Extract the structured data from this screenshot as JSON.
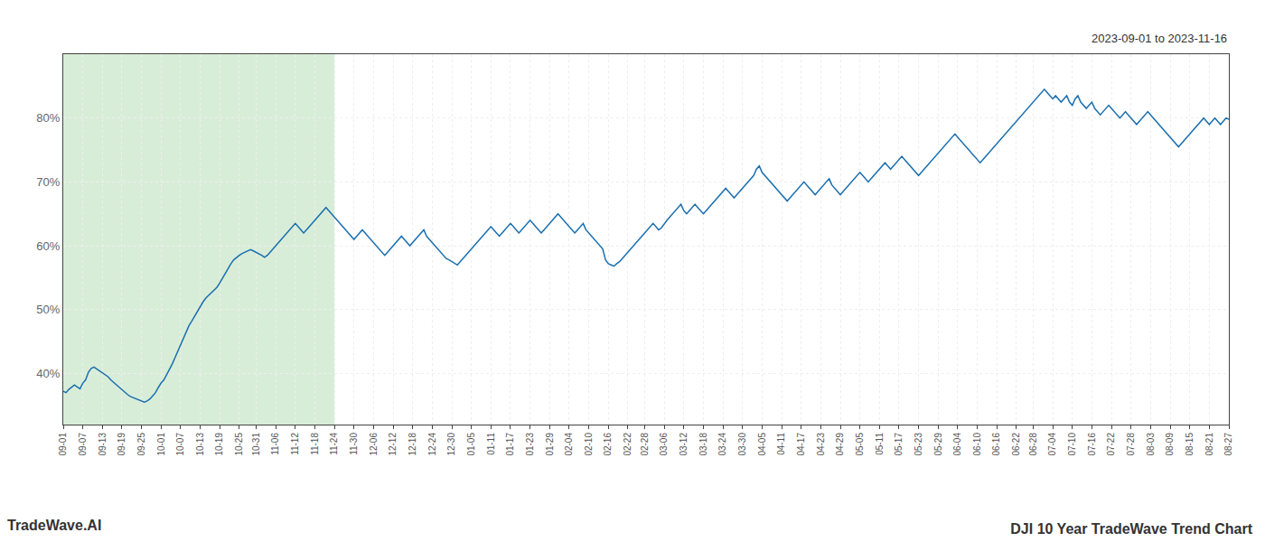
{
  "chart_data": {
    "type": "line",
    "title": "DJI 10 Year TradeWave Trend Chart",
    "annotations": [
      {
        "text": "TradeWave.AI"
      },
      {
        "text": "2023-09-01 to 2023-11-16"
      }
    ],
    "color": "#1a6faf",
    "grid": true,
    "ylim": [
      32,
      90
    ],
    "yticks": [
      {
        "value": 40,
        "label": "40%"
      },
      {
        "value": 50,
        "label": "50%"
      },
      {
        "value": 60,
        "label": "60%"
      },
      {
        "value": 70,
        "label": "70%"
      },
      {
        "value": 80,
        "label": "80%"
      }
    ],
    "spans": [
      {
        "start": "09-01",
        "end": "11-24",
        "color": "#d8edd8"
      }
    ],
    "categories": [
      "09-01",
      null,
      null,
      null,
      null,
      null,
      null,
      "09-07",
      null,
      null,
      null,
      null,
      null,
      null,
      "09-13",
      null,
      null,
      null,
      null,
      null,
      null,
      "09-19",
      null,
      null,
      null,
      null,
      null,
      null,
      "09-25",
      null,
      null,
      null,
      null,
      null,
      null,
      "10-01",
      null,
      null,
      null,
      null,
      null,
      null,
      "10-07",
      null,
      null,
      null,
      null,
      null,
      null,
      "10-13",
      null,
      null,
      null,
      null,
      null,
      null,
      "10-19",
      null,
      null,
      null,
      null,
      null,
      null,
      "10-25",
      null,
      null,
      null,
      null,
      null,
      "10-31",
      null,
      null,
      null,
      null,
      null,
      null,
      "11-06",
      null,
      null,
      null,
      null,
      null,
      null,
      "11-12",
      null,
      null,
      null,
      null,
      null,
      null,
      "11-18",
      null,
      null,
      null,
      null,
      null,
      null,
      "11-24",
      null,
      null,
      null,
      null,
      null,
      null,
      "11-30",
      null,
      null,
      null,
      null,
      null,
      null,
      "12-06",
      null,
      null,
      null,
      null,
      null,
      null,
      "12-12",
      null,
      null,
      null,
      null,
      null,
      null,
      "12-18",
      null,
      null,
      null,
      null,
      null,
      null,
      "12-24",
      null,
      null,
      null,
      null,
      null,
      null,
      "12-30",
      null,
      null,
      null,
      null,
      null,
      null,
      "01-05",
      null,
      null,
      null,
      null,
      null,
      null,
      "01-11",
      null,
      null,
      null,
      null,
      null,
      null,
      "01-17",
      null,
      null,
      null,
      null,
      null,
      null,
      "01-23",
      null,
      null,
      null,
      null,
      null,
      null,
      "01-29",
      null,
      null,
      null,
      null,
      null,
      null,
      "02-04",
      null,
      null,
      null,
      null,
      null,
      null,
      "02-10",
      null,
      null,
      null,
      null,
      null,
      null,
      "02-16",
      null,
      null,
      null,
      null,
      null,
      null,
      "02-22",
      null,
      null,
      null,
      null,
      null,
      "02-28",
      null,
      null,
      null,
      null,
      null,
      null,
      "03-06",
      null,
      null,
      null,
      null,
      null,
      null,
      "03-12",
      null,
      null,
      null,
      null,
      null,
      null,
      "03-18",
      null,
      null,
      null,
      null,
      null,
      null,
      "03-24",
      null,
      null,
      null,
      null,
      null,
      null,
      "03-30",
      null,
      null,
      null,
      null,
      null,
      null,
      "04-05",
      null,
      null,
      null,
      null,
      null,
      null,
      "04-11",
      null,
      null,
      null,
      null,
      null,
      null,
      "04-17",
      null,
      null,
      null,
      null,
      null,
      null,
      "04-23",
      null,
      null,
      null,
      null,
      null,
      null,
      "04-29",
      null,
      null,
      null,
      null,
      null,
      null,
      "05-05",
      null,
      null,
      null,
      null,
      null,
      null,
      "05-11",
      null,
      null,
      null,
      null,
      null,
      null,
      "05-17",
      null,
      null,
      null,
      null,
      null,
      null,
      "05-23",
      null,
      null,
      null,
      null,
      null,
      null,
      "05-29",
      null,
      null,
      null,
      null,
      null,
      null,
      "06-04",
      null,
      null,
      null,
      null,
      null,
      null,
      "06-10",
      null,
      null,
      null,
      null,
      null,
      null,
      "06-16",
      null,
      null,
      null,
      null,
      null,
      null,
      "06-22",
      null,
      null,
      null,
      null,
      null,
      "06-28",
      null,
      null,
      null,
      null,
      null,
      null,
      "07-04",
      null,
      null,
      null,
      null,
      null,
      null,
      "07-10",
      null,
      null,
      null,
      null,
      null,
      null,
      "07-16",
      null,
      null,
      null,
      null,
      null,
      null,
      "07-22",
      null,
      null,
      null,
      null,
      null,
      null,
      "07-28",
      null,
      null,
      null,
      null,
      null,
      null,
      "08-03",
      null,
      null,
      null,
      null,
      null,
      null,
      "08-09",
      null,
      null,
      null,
      null,
      null,
      null,
      "08-15",
      null,
      null,
      null,
      null,
      null,
      null,
      "08-21",
      null,
      null,
      null,
      null,
      null,
      null,
      "08-27"
    ],
    "values": [
      37.2,
      37.0,
      37.5,
      37.8,
      38.2,
      37.9,
      37.6,
      38.5,
      39.0,
      40.2,
      40.8,
      41.0,
      40.7,
      40.3,
      40.0,
      39.8,
      39.5,
      39.0,
      38.6,
      38.2,
      37.8,
      37.4,
      37.0,
      36.7,
      36.4,
      36.2,
      36.0,
      35.8,
      35.6,
      35.5,
      35.7,
      36.0,
      36.5,
      37.0,
      37.8,
      38.5,
      39.0,
      39.8,
      40.5,
      41.5,
      42.5,
      43.5,
      44.5,
      45.5,
      46.5,
      47.5,
      48.2,
      49.0,
      49.8,
      50.5,
      51.2,
      51.8,
      52.2,
      52.6,
      53.0,
      53.5,
      54.2,
      55.0,
      55.8,
      56.5,
      57.2,
      57.8,
      58.2,
      58.5,
      58.8,
      59.0,
      59.2,
      59.4,
      59.2,
      59.0,
      58.8,
      58.5,
      58.2,
      58.5,
      59.0,
      59.5,
      60.0,
      60.5,
      61.0,
      61.5,
      62.0,
      62.5,
      63.0,
      63.5,
      63.0,
      62.5,
      62.0,
      62.5,
      63.0,
      63.5,
      64.0,
      64.5,
      65.0,
      65.5,
      66.0,
      65.5,
      65.0,
      64.5,
      64.0,
      63.5,
      63.0,
      62.5,
      62.0,
      61.5,
      61.0,
      61.5,
      62.0,
      62.5,
      62.0,
      61.5,
      61.0,
      60.5,
      60.0,
      59.5,
      59.0,
      58.5,
      59.0,
      59.5,
      60.0,
      60.5,
      61.0,
      61.5,
      61.0,
      60.5,
      60.0,
      60.5,
      61.0,
      61.5,
      62.0,
      62.5,
      61.5,
      61.0,
      60.5,
      60.0,
      59.5,
      59.0,
      58.5,
      58.0,
      57.8,
      57.5,
      57.3,
      57.0,
      57.5,
      58.0,
      58.5,
      59.0,
      59.5,
      60.0,
      60.5,
      61.0,
      61.5,
      62.0,
      62.5,
      63.0,
      62.5,
      62.0,
      61.5,
      62.0,
      62.5,
      63.0,
      63.5,
      63.0,
      62.5,
      62.0,
      62.5,
      63.0,
      63.5,
      64.0,
      63.5,
      63.0,
      62.5,
      62.0,
      62.5,
      63.0,
      63.5,
      64.0,
      64.5,
      65.0,
      64.5,
      64.0,
      63.5,
      63.0,
      62.5,
      62.0,
      62.5,
      63.0,
      63.5,
      62.5,
      62.0,
      61.5,
      61.0,
      60.5,
      60.0,
      59.5,
      57.8,
      57.2,
      57.0,
      56.8,
      57.2,
      57.5,
      58.0,
      58.5,
      59.0,
      59.5,
      60.0,
      60.5,
      61.0,
      61.5,
      62.0,
      62.5,
      63.0,
      63.5,
      63.0,
      62.5,
      62.8,
      63.5,
      64.0,
      64.5,
      65.0,
      65.5,
      66.0,
      66.5,
      65.5,
      65.0,
      65.5,
      66.0,
      66.5,
      66.0,
      65.5,
      65.0,
      65.5,
      66.0,
      66.5,
      67.0,
      67.5,
      68.0,
      68.5,
      69.0,
      68.5,
      68.0,
      67.5,
      68.0,
      68.5,
      69.0,
      69.5,
      70.0,
      70.5,
      71.0,
      72.0,
      72.5,
      71.5,
      71.0,
      70.5,
      70.0,
      69.5,
      69.0,
      68.5,
      68.0,
      67.5,
      67.0,
      67.5,
      68.0,
      68.5,
      69.0,
      69.5,
      70.0,
      69.5,
      69.0,
      68.5,
      68.0,
      68.5,
      69.0,
      69.5,
      70.0,
      70.5,
      69.5,
      69.0,
      68.5,
      68.0,
      68.5,
      69.0,
      69.5,
      70.0,
      70.5,
      71.0,
      71.5,
      71.0,
      70.5,
      70.0,
      70.5,
      71.0,
      71.5,
      72.0,
      72.5,
      73.0,
      72.5,
      72.0,
      72.5,
      73.0,
      73.5,
      74.0,
      73.5,
      73.0,
      72.5,
      72.0,
      71.5,
      71.0,
      71.5,
      72.0,
      72.5,
      73.0,
      73.5,
      74.0,
      74.5,
      75.0,
      75.5,
      76.0,
      76.5,
      77.0,
      77.5,
      77.0,
      76.5,
      76.0,
      75.5,
      75.0,
      74.5,
      74.0,
      73.5,
      73.0,
      73.5,
      74.0,
      74.5,
      75.0,
      75.5,
      76.0,
      76.5,
      77.0,
      77.5,
      78.0,
      78.5,
      79.0,
      79.5,
      80.0,
      80.5,
      81.0,
      81.5,
      82.0,
      82.5,
      83.0,
      83.5,
      84.0,
      84.5,
      84.0,
      83.5,
      83.0,
      83.5,
      83.0,
      82.5,
      83.0,
      83.5,
      82.5,
      82.0,
      83.0,
      83.5,
      82.5,
      82.0,
      81.5,
      82.0,
      82.5,
      81.5,
      81.0,
      80.5,
      81.0,
      81.5,
      82.0,
      81.5,
      81.0,
      80.5,
      80.0,
      80.5,
      81.0,
      80.5,
      80.0,
      79.5,
      79.0,
      79.5,
      80.0,
      80.5,
      81.0,
      80.5,
      80.0,
      79.5,
      79.0,
      78.5,
      78.0,
      77.5,
      77.0,
      76.5,
      76.0,
      75.5,
      76.0,
      76.5,
      77.0,
      77.5,
      78.0,
      78.5,
      79.0,
      79.5,
      80.0,
      79.5,
      79.0,
      79.5,
      80.0,
      79.5,
      79.0,
      79.5,
      80.0,
      79.8
    ]
  }
}
